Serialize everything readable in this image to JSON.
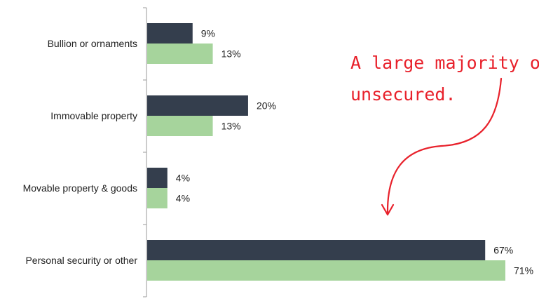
{
  "chart_data": {
    "type": "bar",
    "orientation": "horizontal",
    "categories": [
      "Bullion or ornaments",
      "Immovable property",
      "Movable property & goods",
      "Personal security or other"
    ],
    "series": [
      {
        "values": [
          9,
          20,
          4,
          67
        ],
        "color": "#343e4d"
      },
      {
        "values": [
          13,
          13,
          4,
          71
        ],
        "color": "#a6d49c"
      }
    ],
    "value_suffix": "%",
    "xlim": [
      0,
      71
    ],
    "grid": false,
    "legend": "none"
  },
  "annotation": {
    "lines": [
      "A large majority of",
      "unsecured."
    ],
    "color": "#e8212b"
  }
}
